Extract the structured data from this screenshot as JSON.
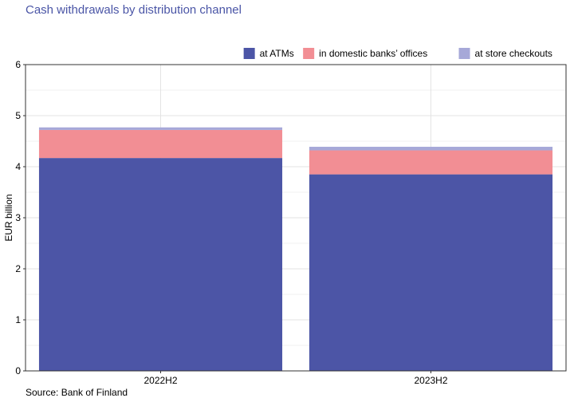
{
  "title": "Cash withdrawals by distribution channel",
  "source": "Source: Bank of Finland",
  "chart_data": {
    "type": "bar",
    "stacked": true,
    "categories": [
      "2022H2",
      "2023H2"
    ],
    "series": [
      {
        "name": "at ATMs",
        "color": "#4c55a6",
        "values": [
          4.17,
          3.85
        ]
      },
      {
        "name": "in domestic banks’ offices",
        "color": "#f28e94",
        "values": [
          0.55,
          0.47
        ]
      },
      {
        "name": "at store checkouts",
        "color": "#a6a8d8",
        "values": [
          0.05,
          0.07
        ]
      }
    ],
    "ylabel": "EUR billion",
    "ylim": [
      0,
      6
    ],
    "yticks": [
      "0",
      "1",
      "2",
      "3",
      "4",
      "5",
      "6"
    ],
    "grid": true,
    "legend_position": "top-right"
  }
}
